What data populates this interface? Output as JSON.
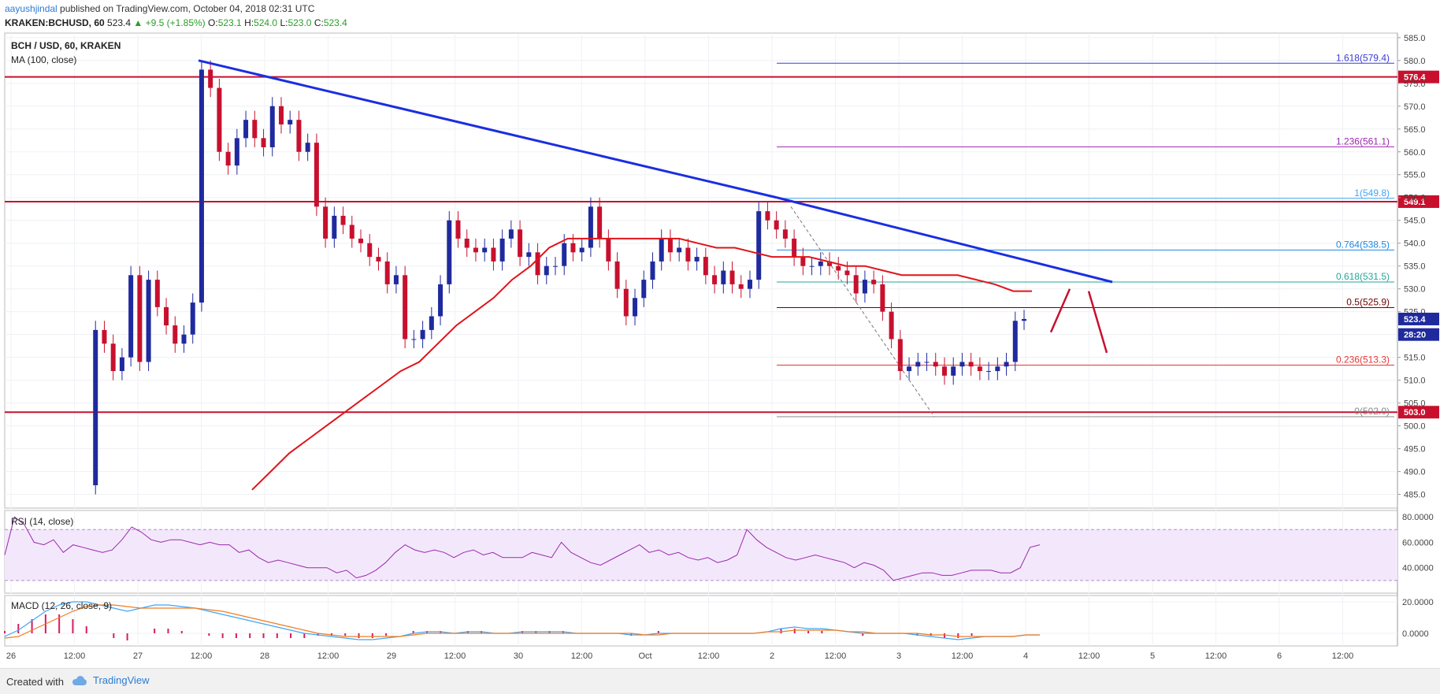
{
  "header": {
    "author": "aayushjindal",
    "published": " published on TradingView.com, October 04, 2018 02:31 UTC",
    "symbol": "KRAKEN:BCHUSD, 60",
    "last": "523.4",
    "change": "▲ +9.5 (+1.85%)",
    "ohlc": {
      "o": "523.1",
      "h": "524.0",
      "l": "523.0",
      "c": "523.4"
    }
  },
  "main_pane": {
    "title": "BCH / USD, 60, KRAKEN",
    "indicator": "MA (100, close)"
  },
  "rsi_pane": {
    "title": "RSI (14, close)"
  },
  "macd_pane": {
    "title": "MACD (12, 26, close, 9)"
  },
  "footer": {
    "created": "Created with",
    "brand": "TradingView"
  },
  "colors": {
    "up": "#1f2a9e",
    "down": "#c8102e",
    "trend": "#1a2ee0",
    "ma": "#e0141a",
    "rsi": "#9c27b0",
    "macd": "#42a5f5",
    "signal": "#ef7d22",
    "hist": "#d81b60"
  },
  "chart_data": {
    "type": "candlestick",
    "ylim": [
      482,
      586
    ],
    "y_ticks": [
      485,
      490,
      495,
      500,
      505,
      510,
      515,
      520,
      525,
      530,
      535,
      540,
      545,
      550,
      555,
      560,
      565,
      570,
      575,
      580,
      585
    ],
    "y_tick_labels": [
      "485.0",
      "490.0",
      "495.0",
      "500.0",
      "505.0",
      "510.0",
      "515.0",
      "520.0",
      "525.0",
      "530.0",
      "535.0",
      "540.0",
      "545.0",
      "550.0",
      "555.0",
      "560.0",
      "565.0",
      "570.0",
      "575.0",
      "580.0",
      "585.0"
    ],
    "x_ticks": [
      "26",
      "12:00",
      "27",
      "12:00",
      "28",
      "12:00",
      "29",
      "12:00",
      "30",
      "12:00",
      "Oct",
      "12:00",
      "2",
      "12:00",
      "3",
      "12:00",
      "4",
      "12:00",
      "5",
      "12:00",
      "6",
      "12:00"
    ],
    "closes": [
      487,
      521,
      518,
      512,
      515,
      533,
      514,
      532,
      526,
      522,
      518,
      520,
      527,
      578,
      574,
      560,
      557,
      563,
      567,
      563,
      561,
      570,
      566,
      567,
      560,
      562,
      548,
      541,
      546,
      544,
      541,
      540,
      537,
      536,
      531,
      533,
      519,
      519,
      521,
      524,
      531,
      545,
      541,
      539,
      538,
      539,
      536,
      541,
      543,
      537,
      538,
      533,
      535,
      535,
      540,
      538,
      539,
      548,
      541,
      536,
      530,
      524,
      528,
      532,
      536,
      541,
      538,
      539,
      536,
      537,
      533,
      531,
      534,
      531,
      530,
      532,
      547,
      545,
      543,
      541,
      537,
      535,
      535,
      536,
      535,
      534,
      533,
      529,
      532,
      531,
      525,
      519,
      512,
      513,
      514,
      514,
      513,
      511,
      513,
      514,
      513,
      512,
      512,
      513,
      514,
      523,
      523.4
    ],
    "ma100": [
      null,
      null,
      null,
      null,
      null,
      null,
      null,
      null,
      null,
      null,
      null,
      null,
      null,
      null,
      null,
      null,
      null,
      null,
      null,
      null,
      null,
      null,
      null,
      null,
      null,
      null,
      null,
      486,
      490,
      494,
      497,
      500,
      503,
      506,
      509,
      512,
      514,
      518,
      522,
      525,
      528,
      532,
      535,
      539,
      541,
      541,
      541,
      541,
      541,
      541,
      541,
      540,
      539,
      539,
      538,
      537,
      537,
      537,
      536,
      535,
      535,
      534,
      533,
      533,
      533,
      533,
      532,
      531,
      529.5,
      529.5
    ],
    "rsi_ylim": [
      20,
      85
    ],
    "rsi_ticks": [
      "80.0000",
      "60.0000",
      "40.0000"
    ],
    "rsi_values": [
      50,
      80,
      74,
      60,
      58,
      62,
      52,
      58,
      56,
      54,
      52,
      54,
      62,
      72,
      68,
      62,
      60,
      62,
      62,
      60,
      58,
      60,
      58,
      58,
      52,
      54,
      48,
      44,
      46,
      44,
      42,
      40,
      40,
      40,
      36,
      38,
      32,
      34,
      38,
      44,
      52,
      58,
      54,
      52,
      54,
      52,
      48,
      52,
      54,
      50,
      52,
      48,
      48,
      48,
      52,
      50,
      48,
      60,
      52,
      48,
      44,
      42,
      46,
      50,
      54,
      58,
      52,
      54,
      50,
      52,
      48,
      46,
      48,
      44,
      46,
      50,
      70,
      62,
      56,
      52,
      48,
      46,
      48,
      50,
      48,
      46,
      44,
      40,
      44,
      42,
      38,
      30,
      32,
      34,
      36,
      36,
      34,
      34,
      36,
      38,
      38,
      38,
      36,
      36,
      40,
      56,
      58
    ],
    "macd_ylim": [
      -8,
      24
    ],
    "macd_ticks": [
      "20.0000",
      "0.0000"
    ],
    "macd_values": [
      -2,
      2,
      8,
      14,
      18,
      20,
      20,
      18,
      16,
      14,
      16,
      18,
      18,
      17,
      16,
      14,
      12,
      10,
      8,
      6,
      4,
      2,
      0,
      -1,
      -2,
      -3,
      -4,
      -4,
      -3,
      -2,
      0,
      1,
      1,
      0,
      1,
      1,
      0,
      0,
      1,
      1,
      1,
      1,
      0,
      0,
      0,
      0,
      -1,
      -1,
      0,
      0,
      0,
      0,
      0,
      0,
      0,
      0,
      1,
      3,
      4,
      3,
      3,
      2,
      1,
      0,
      0,
      0,
      0,
      -1,
      -2,
      -3,
      -4,
      -3,
      -2,
      -2,
      -2,
      -1,
      -1
    ],
    "signal_values": [
      -3,
      -2,
      2,
      6,
      10,
      14,
      17,
      18,
      18,
      17,
      16,
      16,
      16,
      16,
      16,
      15,
      14,
      12,
      10,
      8,
      6,
      4,
      2,
      0,
      -1,
      -2,
      -2,
      -2,
      -2,
      -2,
      -1,
      0,
      0,
      0,
      0,
      0,
      0,
      0,
      0,
      0,
      0,
      0,
      0,
      0,
      0,
      0,
      0,
      -1,
      -1,
      0,
      0,
      0,
      0,
      0,
      0,
      0,
      1,
      1,
      2,
      2,
      2,
      2,
      1,
      1,
      0,
      0,
      0,
      0,
      -1,
      -1,
      -2,
      -2,
      -2,
      -2,
      -2,
      -1,
      -1
    ],
    "fib_levels": [
      {
        "label": "1.618(579.4)",
        "value": 579.4,
        "color": "#3b3bd6"
      },
      {
        "label": "1.236(561.1)",
        "value": 561.1,
        "color": "#9c27b0"
      },
      {
        "label": "1(549.8)",
        "value": 549.8,
        "color": "#42a5f5"
      },
      {
        "label": "0.764(538.5)",
        "value": 538.5,
        "color": "#1e88e5"
      },
      {
        "label": "0.618(531.5)",
        "value": 531.5,
        "color": "#26a69a"
      },
      {
        "label": "0.5(525.9)",
        "value": 525.9,
        "color": "#6d0000"
      },
      {
        "label": "0.236(513.3)",
        "value": 513.3,
        "color": "#e53935"
      },
      {
        "label": "0(502.0)",
        "value": 502.0,
        "color": "#888888"
      }
    ],
    "horizontal_levels": [
      {
        "label": "576.4",
        "value": 576.4
      },
      {
        "label": "549.1",
        "value": 549.1
      },
      {
        "label": "503.0",
        "value": 503.0
      }
    ],
    "price_tags": [
      {
        "label": "523.4",
        "value": 523.4,
        "color": "#1f2a9e"
      },
      {
        "label": "28:20",
        "value": 520.0,
        "color": "#1f2a9e"
      }
    ]
  }
}
